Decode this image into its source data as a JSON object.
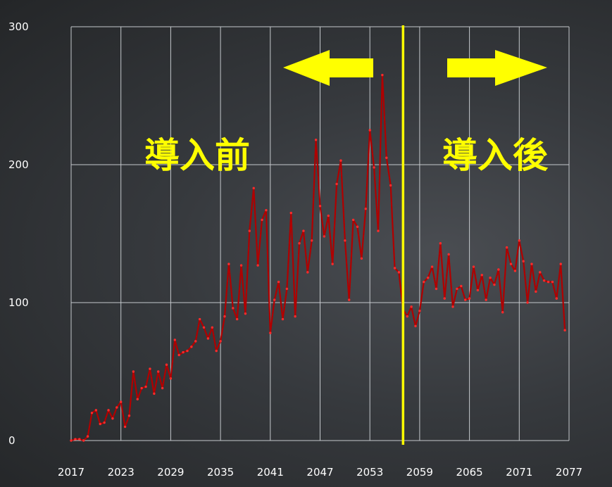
{
  "chart_data": {
    "type": "line",
    "x_start": 2017,
    "x_end": 2077,
    "x_ticks": [
      "2017",
      "2023",
      "2029",
      "2035",
      "2041",
      "2047",
      "2053",
      "2059",
      "2065",
      "2071",
      "2077"
    ],
    "y_ticks": [
      "0",
      "100",
      "200",
      "300"
    ],
    "ylim": [
      0,
      300
    ],
    "grid": true,
    "series": [
      {
        "color": "#b00000",
        "x": [
          2017,
          2017.5,
          2018,
          2018.5,
          2019,
          2019.5,
          2020,
          2020.5,
          2021,
          2021.5,
          2022,
          2022.5,
          2023,
          2023.5,
          2024,
          2024.5,
          2025,
          2025.5,
          2026,
          2026.5,
          2027,
          2027.5,
          2028,
          2028.5,
          2029,
          2029.5,
          2030,
          2030.5,
          2031,
          2031.5,
          2032,
          2032.5,
          2033,
          2033.5,
          2034,
          2034.5,
          2035,
          2035.5,
          2036,
          2036.5,
          2037,
          2037.5,
          2038,
          2038.5,
          2039,
          2039.5,
          2040,
          2040.5,
          2041,
          2041.5,
          2042,
          2042.5,
          2043,
          2043.5,
          2044,
          2044.5,
          2045,
          2045.5,
          2046,
          2046.5,
          2047,
          2047.5,
          2048,
          2048.5,
          2049,
          2049.5,
          2050,
          2050.5,
          2051,
          2051.5,
          2052,
          2052.5,
          2053,
          2053.5,
          2054,
          2054.5,
          2055,
          2055.5,
          2056,
          2056.5,
          2057,
          2057.5,
          2058,
          2058.5,
          2059,
          2059.5,
          2060,
          2060.5,
          2061,
          2061.5,
          2062,
          2062.5,
          2063,
          2063.5,
          2064,
          2064.5,
          2065,
          2065.5,
          2066,
          2066.5,
          2067,
          2067.5,
          2068,
          2068.5,
          2069,
          2069.5,
          2070,
          2070.5,
          2071,
          2071.5,
          2072,
          2072.5,
          2073,
          2073.5,
          2074,
          2074.5,
          2075,
          2075.5,
          2076,
          2076.5
        ],
        "values": [
          0,
          1,
          1,
          0,
          3,
          20,
          22,
          12,
          13,
          22,
          16,
          24,
          28,
          10,
          18,
          50,
          30,
          38,
          39,
          52,
          34,
          50,
          38,
          55,
          45,
          73,
          62,
          64,
          65,
          68,
          72,
          88,
          82,
          74,
          82,
          65,
          72,
          90,
          128,
          96,
          88,
          127,
          92,
          152,
          183,
          127,
          160,
          167,
          78,
          102,
          115,
          88,
          110,
          165,
          90,
          143,
          152,
          122,
          145,
          218,
          170,
          148,
          163,
          128,
          186,
          203,
          145,
          102,
          160,
          155,
          132,
          168,
          225,
          198,
          152,
          265,
          205,
          185,
          125,
          122,
          95,
          90,
          97,
          83,
          94,
          115,
          118,
          126,
          110,
          143,
          103,
          135,
          97,
          110,
          112,
          102,
          103,
          126,
          109,
          120,
          102,
          118,
          113,
          124,
          93,
          140,
          128,
          123,
          145,
          130,
          100,
          128,
          108,
          122,
          116,
          115,
          115,
          103,
          128,
          80
        ]
      }
    ],
    "annotations": {
      "before_label": "導入前",
      "after_label": "導入後",
      "divider_x": 2057,
      "divider_color": "#ffff00"
    }
  }
}
